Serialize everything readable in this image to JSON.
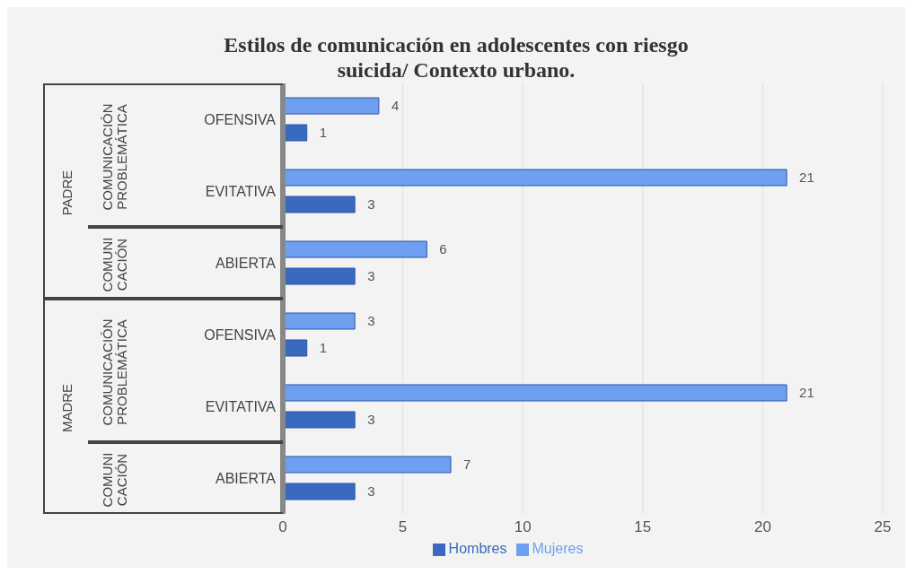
{
  "chart_data": {
    "type": "bar",
    "orientation": "horizontal",
    "title": "Estilos de comunicación en adolescentes con riesgo suicida/ Contexto urbano.",
    "categories": [
      "OFENSIVA",
      "EVITATIVA",
      "ABIERTA",
      "OFENSIVA",
      "EVITATIVA",
      "ABIERTA"
    ],
    "series": [
      {
        "name": "Mujeres",
        "color": "#6f9ff0",
        "values": [
          4,
          21,
          6,
          3,
          21,
          7
        ]
      },
      {
        "name": "Hombres",
        "color": "#3a69c0",
        "values": [
          1,
          3,
          3,
          1,
          3,
          3
        ]
      }
    ],
    "annotations": [
      "PADRE",
      "COMUNICACIÓN\nPROBLEMÁTICA",
      "COMUNI\nCACIÓN",
      "MADRE",
      "COMUNICACIÓN\nPROBLEMÁTICA",
      "COMUNI\nCACIÓN"
    ],
    "xlim": [
      0,
      25
    ],
    "xticks": [
      0,
      5,
      10,
      15,
      20,
      25
    ],
    "grid": "x",
    "legend": "bottom",
    "data_labels": true
  }
}
